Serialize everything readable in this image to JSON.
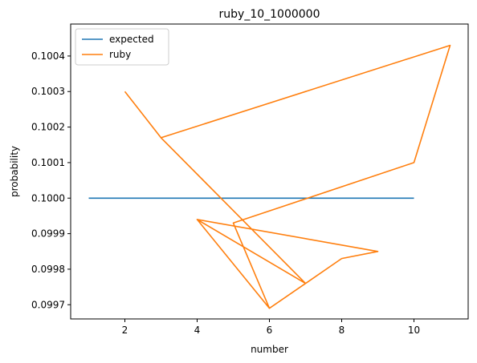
{
  "chart_data": {
    "type": "line",
    "title": "ruby_10_1000000",
    "xlabel": "number",
    "ylabel": "probability",
    "xlim": [
      0.5,
      11.5
    ],
    "ylim": [
      0.09966,
      0.10049
    ],
    "xticks": [
      2,
      4,
      6,
      8,
      10
    ],
    "xtick_labels": [
      "2",
      "4",
      "6",
      "8",
      "10"
    ],
    "yticks": [
      0.0997,
      0.0998,
      0.0999,
      0.1,
      0.1001,
      0.1002,
      0.1003,
      0.1004
    ],
    "ytick_labels": [
      "0.0997",
      "0.0998",
      "0.0999",
      "0.1000",
      "0.1001",
      "0.1002",
      "0.1003",
      "0.1004"
    ],
    "grid": false,
    "legend_position": "top-left",
    "series": [
      {
        "name": "expected",
        "color": "#1f77b4",
        "x": [
          1,
          10
        ],
        "y": [
          0.1,
          0.1
        ]
      },
      {
        "name": "ruby",
        "color": "#ff7f0e",
        "x": [
          2,
          3,
          7,
          4,
          7,
          6,
          4,
          9,
          8,
          7,
          6,
          5,
          10,
          11,
          3
        ],
        "y": [
          0.1003,
          0.10017,
          0.09976,
          0.09994,
          0.09976,
          0.09969,
          0.09994,
          0.09985,
          0.09983,
          0.09976,
          0.09969,
          0.09993,
          0.1001,
          0.10043,
          0.10017
        ]
      }
    ]
  }
}
